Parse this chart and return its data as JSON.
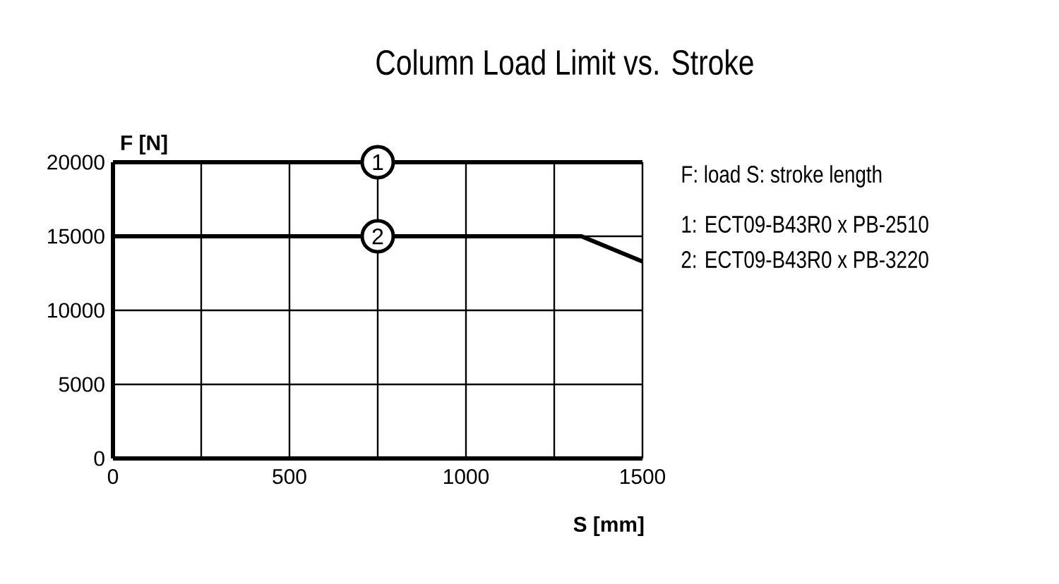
{
  "chart_data": {
    "type": "line",
    "title": "Column Load Limit vs. Stroke",
    "xlabel": "S [mm]",
    "ylabel": "F [N]",
    "x": [
      0,
      1327,
      1500
    ],
    "series": [
      {
        "name": "1:  ECT09-B43R0 x PB-2510",
        "color": "#000000",
        "values": [
          20000,
          20000,
          20000
        ]
      },
      {
        "name": "2:  ECT09-B43R0 x PB-3220",
        "color": "#000000",
        "values": [
          15000,
          15000,
          13300
        ]
      }
    ],
    "xlim": [
      0,
      1500
    ],
    "ylim": [
      0,
      20000
    ],
    "xticks": [
      0,
      {
        "value": 250,
        "label": null
      },
      500,
      {
        "value": 750,
        "label": null
      },
      1000,
      {
        "value": 1250,
        "label": null
      },
      1500
    ],
    "yticks": [
      0,
      5000,
      10000,
      15000,
      20000
    ],
    "grid": true,
    "legend": "right",
    "marker": "none",
    "line_style": "solid",
    "annotations": [
      "F: load   S: stroke length",
      {
        "text": "1",
        "x": 750,
        "y": 20000
      },
      {
        "text": "2",
        "x": 750,
        "y": 15000
      }
    ]
  }
}
